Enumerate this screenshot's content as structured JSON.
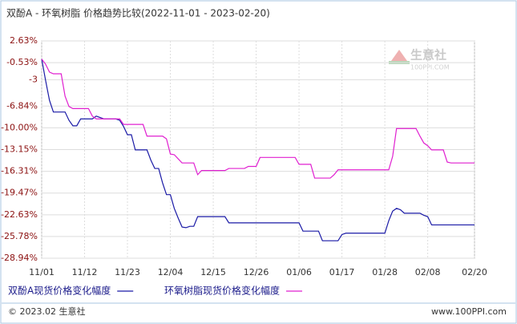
{
  "chart_data": {
    "type": "line",
    "title": "双酚A - 环氧树脂  价格趋势比较(2022-11-01 - 2023-02-20)",
    "categories": [
      "11/01",
      null,
      null,
      null,
      null,
      null,
      null,
      null,
      null,
      null,
      null,
      "11/12",
      null,
      null,
      null,
      null,
      null,
      null,
      null,
      null,
      null,
      null,
      "11/23",
      null,
      null,
      null,
      null,
      null,
      null,
      null,
      null,
      null,
      null,
      "12/04",
      null,
      null,
      null,
      null,
      null,
      null,
      null,
      null,
      null,
      null,
      "12/15",
      null,
      null,
      null,
      null,
      null,
      null,
      null,
      null,
      null,
      null,
      "12/26",
      null,
      null,
      null,
      null,
      null,
      null,
      null,
      null,
      null,
      null,
      "01/06",
      null,
      null,
      null,
      null,
      null,
      null,
      null,
      null,
      null,
      null,
      "01/17",
      null,
      null,
      null,
      null,
      null,
      null,
      null,
      null,
      null,
      null,
      "01/28",
      null,
      null,
      null,
      null,
      null,
      null,
      null,
      null,
      null,
      null,
      "02/08",
      null,
      null,
      null,
      null,
      null,
      null,
      null,
      null,
      null,
      null,
      null,
      "02/20"
    ],
    "series": [
      {
        "name": "双酚A现货价格变化幅度",
        "color": "#1a1aa6",
        "values": [
          0,
          -3.1,
          -6,
          -7.7,
          -7.7,
          -7.7,
          -7.7,
          -8.9,
          -9.7,
          -9.7,
          -8.7,
          -8.7,
          -8.7,
          -8.7,
          -8.3,
          -8.5,
          -8.7,
          -8.7,
          -8.7,
          -8.7,
          -8.9,
          -9.8,
          -11,
          -11,
          -13.2,
          -13.2,
          -13.2,
          -13.2,
          -14.7,
          -15.9,
          -15.9,
          -18,
          -19.7,
          -19.7,
          -21.7,
          -23.1,
          -24.4,
          -24.5,
          -24.3,
          -24.3,
          -22.9,
          -22.9,
          -22.9,
          -22.9,
          -22.9,
          -22.9,
          -22.9,
          -22.9,
          -23.8,
          -23.8,
          -23.8,
          -23.8,
          -23.8,
          -23.8,
          -23.8,
          -23.8,
          -23.8,
          -23.8,
          -23.8,
          -23.8,
          -23.8,
          -23.8,
          -23.8,
          -23.8,
          -23.8,
          -23.8,
          -23.8,
          -25,
          -25,
          -25,
          -25,
          -25,
          -26.4,
          -26.4,
          -26.4,
          -26.4,
          -26.4,
          -25.5,
          -25.3,
          -25.3,
          -25.3,
          -25.3,
          -25.3,
          -25.3,
          -25.3,
          -25.3,
          -25.3,
          -25.3,
          -25.3,
          -23.5,
          -22.1,
          -21.7,
          -21.9,
          -22.4,
          -22.4,
          -22.4,
          -22.4,
          -22.4,
          -22.7,
          -22.9,
          -24.1,
          -24.1,
          -24.1,
          -24.1,
          -24.1,
          -24.1,
          -24.1,
          -24.1,
          -24.1,
          -24.1,
          -24.1,
          -24.1
        ]
      },
      {
        "name": "环氧树脂现货价格变化幅度",
        "color": "#e020d0",
        "values": [
          0,
          -0.75,
          -1.9,
          -2.15,
          -2.15,
          -2.15,
          -5.4,
          -6.9,
          -7.2,
          -7.2,
          -7.2,
          -7.2,
          -7.2,
          -8.3,
          -8.7,
          -8.7,
          -8.7,
          -8.7,
          -8.7,
          -8.7,
          -8.7,
          -9.5,
          -9.5,
          -9.5,
          -9.5,
          -9.5,
          -9.5,
          -11.2,
          -11.2,
          -11.2,
          -11.2,
          -11.2,
          -11.6,
          -13.8,
          -13.9,
          -14.5,
          -15.1,
          -15.1,
          -15.1,
          -15.1,
          -16.8,
          -16.2,
          -16.2,
          -16.2,
          -16.2,
          -16.2,
          -16.2,
          -16.2,
          -15.9,
          -15.9,
          -15.9,
          -15.9,
          -15.9,
          -15.6,
          -15.6,
          -15.6,
          -14.3,
          -14.3,
          -14.3,
          -14.3,
          -14.3,
          -14.3,
          -14.3,
          -14.3,
          -14.3,
          -14.3,
          -15.3,
          -15.3,
          -15.3,
          -15.3,
          -17.3,
          -17.3,
          -17.3,
          -17.3,
          -17.3,
          -16.8,
          -16.1,
          -16.1,
          -16.1,
          -16.1,
          -16.1,
          -16.1,
          -16.1,
          -16.1,
          -16.1,
          -16.1,
          -16.1,
          -16.1,
          -16.1,
          -16.1,
          -14.15,
          -10.1,
          -10.1,
          -10.1,
          -10.1,
          -10.1,
          -10.1,
          -11.2,
          -12.2,
          -12.6,
          -13.2,
          -13.2,
          -13.2,
          -13.2,
          -14.97,
          -15.1,
          -15.1,
          -15.1,
          -15.1,
          -15.1,
          -15.1,
          -15.1
        ]
      }
    ],
    "ylim": [
      -28.94,
      2.63
    ],
    "yticks": [
      {
        "value": 2.63,
        "label": "2.63%"
      },
      {
        "value": -0.53,
        "label": "-0.53%"
      },
      -3,
      {
        "value": -6.84,
        "label": "-6.84%"
      },
      {
        "value": -10,
        "label": "-10.00%"
      },
      {
        "value": -13.15,
        "label": "-13.15%"
      },
      {
        "value": -16.31,
        "label": "-16.31%"
      },
      {
        "value": -19.47,
        "label": "-19.47%"
      },
      {
        "value": -22.63,
        "label": "-22.63%"
      },
      {
        "value": -25.78,
        "label": "-25.78%"
      },
      {
        "value": -28.94,
        "label": "-28.94%"
      }
    ],
    "grid": true,
    "watermark": {
      "name": "生意社",
      "site": "100PPI.COM"
    },
    "footer": {
      "left": "© 2023.02 生意社",
      "right": "www.100PPI.com"
    }
  }
}
